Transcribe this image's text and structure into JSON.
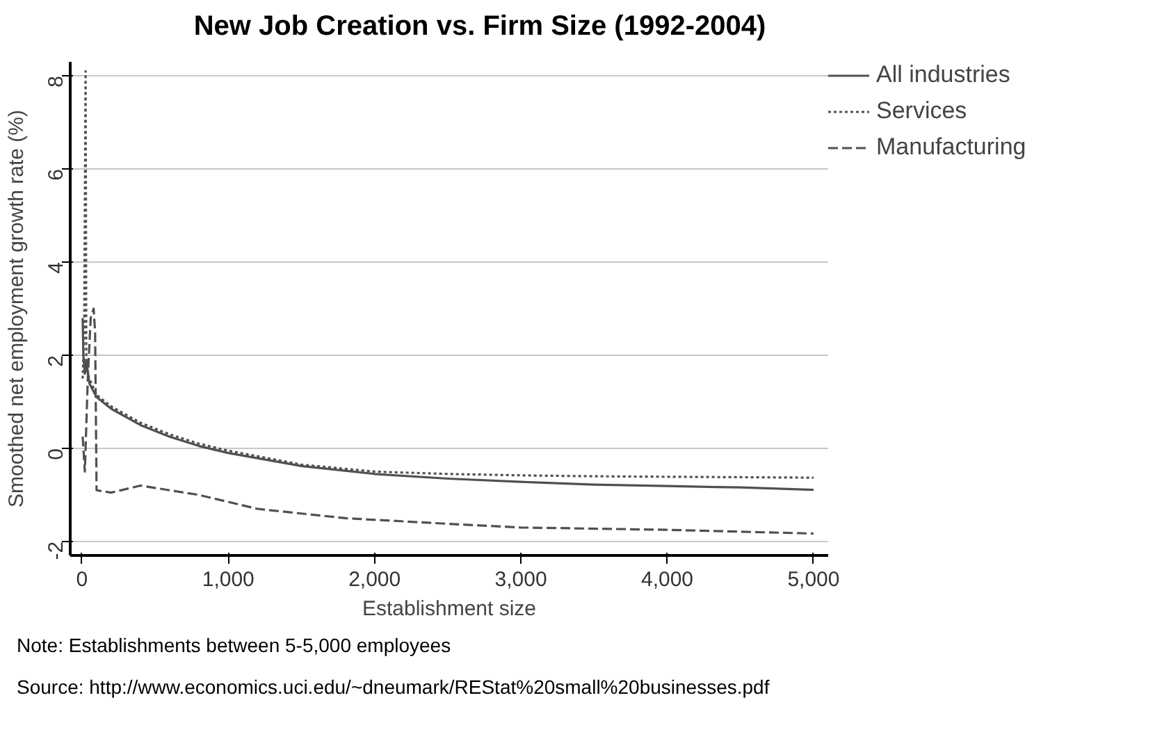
{
  "chart_data": {
    "type": "line",
    "title": "New Job Creation vs. Firm Size (1992-2004)",
    "xlabel": "Establishment size",
    "ylabel": "Smoothed net employment growth rate (%)",
    "xlim": [
      -80,
      5100
    ],
    "ylim": [
      -2.3,
      8.3
    ],
    "xticks": [
      {
        "value": 0,
        "label": "0"
      },
      {
        "value": 1000,
        "label": "1,000"
      },
      {
        "value": 2000,
        "label": "2,000"
      },
      {
        "value": 3000,
        "label": "3,000"
      },
      {
        "value": 4000,
        "label": "4,000"
      },
      {
        "value": 5000,
        "label": "5,000"
      }
    ],
    "yticks": [
      -2,
      0,
      2,
      4,
      6,
      8
    ],
    "grid": "y",
    "legend": "right",
    "series": [
      {
        "name": "All industries",
        "color": "#505050",
        "line_style": "solid",
        "x": [
          5,
          10,
          20,
          30,
          50,
          100,
          200,
          400,
          600,
          800,
          1000,
          1500,
          2000,
          2500,
          3000,
          3500,
          4000,
          4500,
          5000
        ],
        "values": [
          2.8,
          2.0,
          1.6,
          1.9,
          1.4,
          1.1,
          0.85,
          0.5,
          0.25,
          0.05,
          -0.1,
          -0.38,
          -0.55,
          -0.65,
          -0.72,
          -0.78,
          -0.81,
          -0.84,
          -0.89
        ]
      },
      {
        "name": "Services",
        "color": "#505050",
        "line_style": "dotted",
        "x": [
          5,
          15,
          25,
          30,
          40,
          50,
          100,
          200,
          400,
          600,
          800,
          1000,
          1500,
          2000,
          2500,
          3000,
          3500,
          4000,
          4500,
          5000
        ],
        "values": [
          1.5,
          2.5,
          8.1,
          1.8,
          1.6,
          1.5,
          1.15,
          0.9,
          0.55,
          0.3,
          0.1,
          -0.05,
          -0.35,
          -0.5,
          -0.55,
          -0.58,
          -0.6,
          -0.61,
          -0.62,
          -0.63
        ]
      },
      {
        "name": "Manufacturing",
        "color": "#505050",
        "line_style": "dashed",
        "x": [
          5,
          20,
          40,
          60,
          80,
          90,
          100,
          200,
          400,
          600,
          800,
          1200,
          1800,
          2500,
          3000,
          4000,
          5000
        ],
        "values": [
          0.25,
          -0.5,
          1.5,
          2.8,
          3.0,
          2.5,
          -0.9,
          -0.95,
          -0.8,
          -0.9,
          -1.0,
          -1.3,
          -1.5,
          -1.62,
          -1.7,
          -1.75,
          -1.83
        ]
      }
    ],
    "annotations": [
      "Note: Establishments between 5-5,000 employees",
      "Source: http://www.economics.uci.edu/~dneumark/REStat%20small%20businesses.pdf"
    ]
  }
}
